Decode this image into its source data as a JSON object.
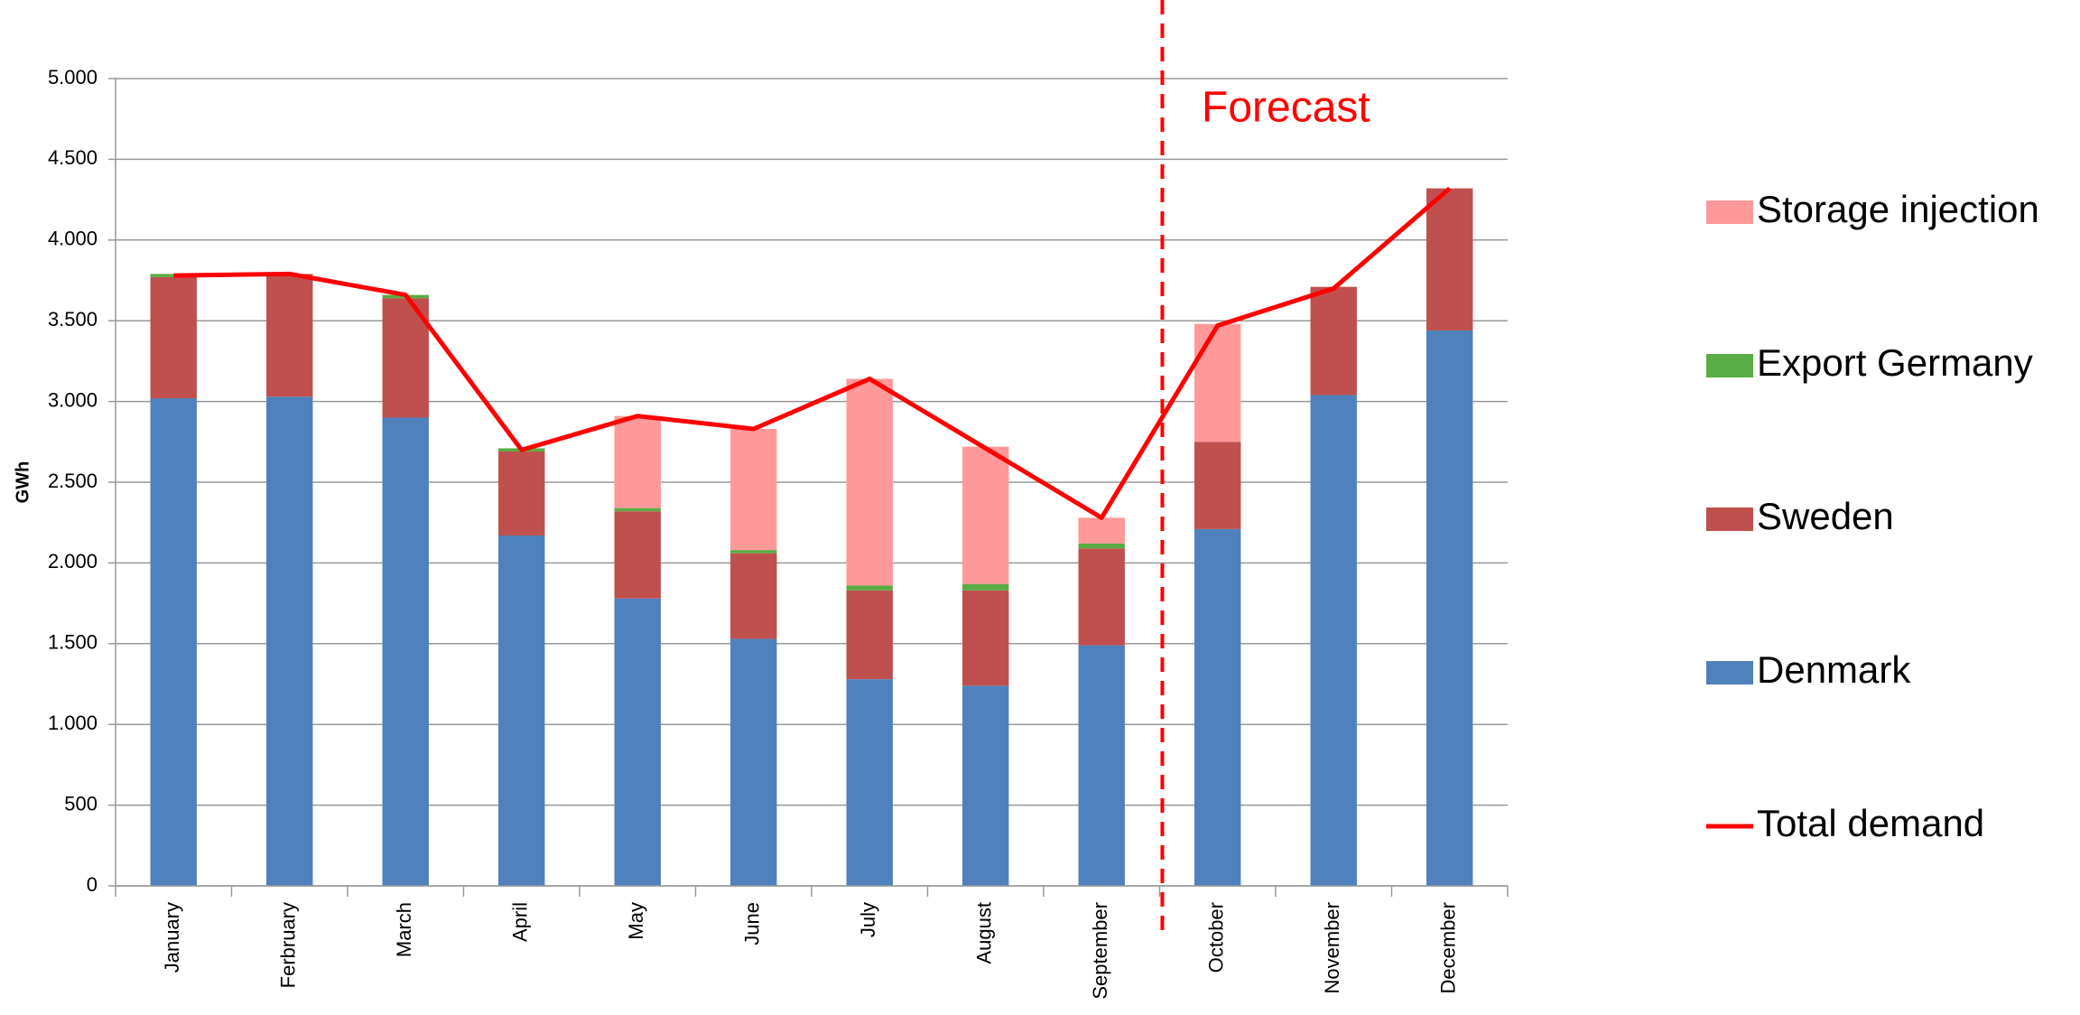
{
  "chart_data": {
    "type": "bar",
    "stacked": true,
    "y_label": "GWh",
    "annotation": "Forecast",
    "categories": [
      "January",
      "Ferbruary",
      "March",
      "April",
      "May",
      "June",
      "July",
      "August",
      "September",
      "October",
      "November",
      "December"
    ],
    "series": [
      {
        "name": "Denmark",
        "color": "#4f81bd",
        "values": [
          3020,
          3030,
          2900,
          2170,
          1780,
          1530,
          1280,
          1240,
          1490,
          2210,
          3040,
          3440
        ]
      },
      {
        "name": "Sweden",
        "color": "#c0504d",
        "values": [
          750,
          760,
          740,
          520,
          540,
          530,
          550,
          590,
          600,
          540,
          670,
          880
        ]
      },
      {
        "name": "Export Germany",
        "color": "#5aac44",
        "values": [
          20,
          0,
          20,
          20,
          20,
          20,
          30,
          40,
          30,
          0,
          0,
          0
        ]
      },
      {
        "name": "Storage injection",
        "color": "#ff9999",
        "values": [
          0,
          0,
          0,
          0,
          570,
          750,
          1280,
          850,
          160,
          730,
          0,
          0
        ]
      },
      {
        "name": "Total demand",
        "type": "line",
        "color": "#ff0000",
        "values": [
          3780,
          3790,
          3660,
          2700,
          2910,
          2830,
          3140,
          2710,
          2280,
          3470,
          3700,
          4320
        ]
      }
    ],
    "ylim": [
      0,
      5000
    ],
    "yticks": [
      0,
      500,
      {
        "value": 1000,
        "label": "1.000"
      },
      {
        "value": 1500,
        "label": "1.500"
      },
      {
        "value": 2000,
        "label": "2.000"
      },
      {
        "value": 2500,
        "label": "2.500"
      },
      {
        "value": 3000,
        "label": "3.000"
      },
      {
        "value": 3500,
        "label": "3.500"
      },
      {
        "value": 4000,
        "label": "4.000"
      },
      {
        "value": 4500,
        "label": "4.500"
      },
      {
        "value": 5000,
        "label": "5.000"
      }
    ],
    "grid": true
  }
}
